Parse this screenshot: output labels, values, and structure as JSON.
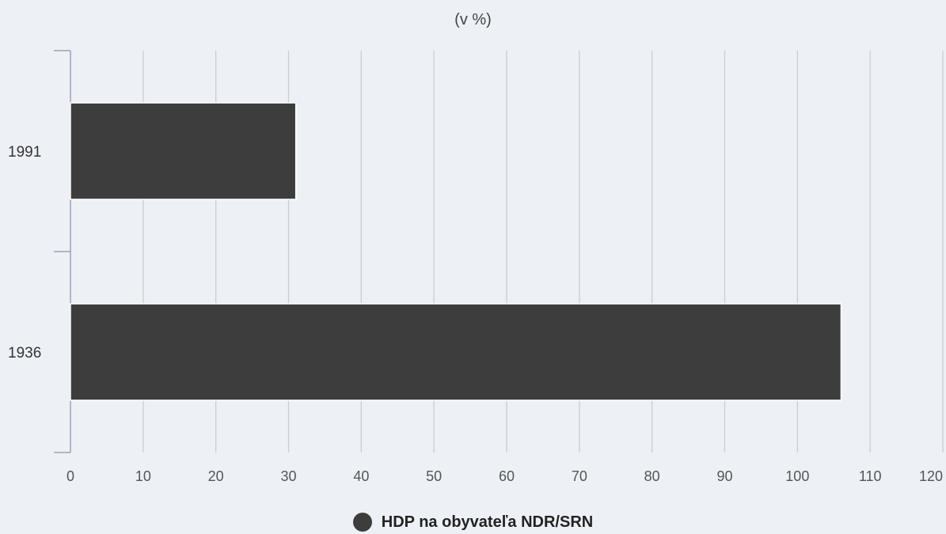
{
  "chart_data": {
    "type": "bar",
    "orientation": "horizontal",
    "title": "(v %)",
    "xlabel": "",
    "ylabel": "",
    "categories": [
      "1991",
      "1936"
    ],
    "series": [
      {
        "name": "HDP na obyvateľa NDR/SRN",
        "values": [
          31,
          106
        ]
      }
    ],
    "xlim": [
      0,
      120
    ],
    "xticks": [
      0,
      10,
      20,
      30,
      40,
      50,
      60,
      70,
      80,
      90,
      100,
      110,
      120
    ],
    "grid": true,
    "legend": "bottom-center",
    "colors": {
      "bar": "#3d3d3d",
      "grid": "#c9cdd4",
      "axis": "#9aa3b8",
      "background": "#edf1f6"
    }
  }
}
